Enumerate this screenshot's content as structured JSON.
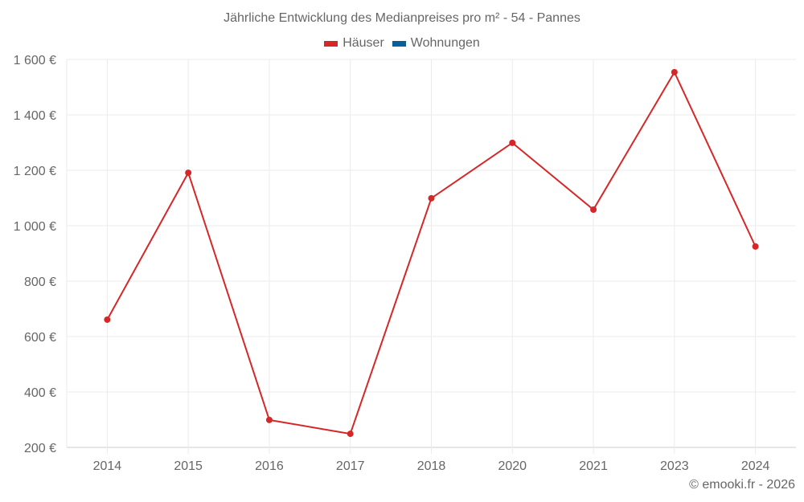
{
  "title": "Jährliche Entwicklung des Medianpreises pro m² - 54 - Pannes",
  "legend": [
    {
      "label": "Häuser",
      "color": "#d62728"
    },
    {
      "label": "Wohnungen",
      "color": "#08609a"
    }
  ],
  "credit": "© emooki.fr - 2026",
  "chart_data": {
    "type": "line",
    "title": "Jährliche Entwicklung des Medianpreises pro m² - 54 - Pannes",
    "xlabel": "",
    "ylabel": "",
    "categories": [
      "2014",
      "2015",
      "2016",
      "2017",
      "2018",
      "2020",
      "2021",
      "2023",
      "2024"
    ],
    "series": [
      {
        "name": "Häuser",
        "color": "#d62728",
        "values": [
          661,
          1191,
          299,
          249,
          1099,
          1299,
          1058,
          1554,
          925
        ]
      },
      {
        "name": "Wohnungen",
        "color": "#08609a",
        "values": []
      }
    ],
    "ylim": [
      200,
      1600
    ],
    "yticks": [
      200,
      400,
      600,
      800,
      1000,
      1200,
      1400,
      1600
    ],
    "ytick_labels": [
      "200 €",
      "400 €",
      "600 €",
      "800 €",
      "1 000 €",
      "1 200 €",
      "1 400 €",
      "1 600 €"
    ],
    "grid": true,
    "legend_position": "top"
  }
}
